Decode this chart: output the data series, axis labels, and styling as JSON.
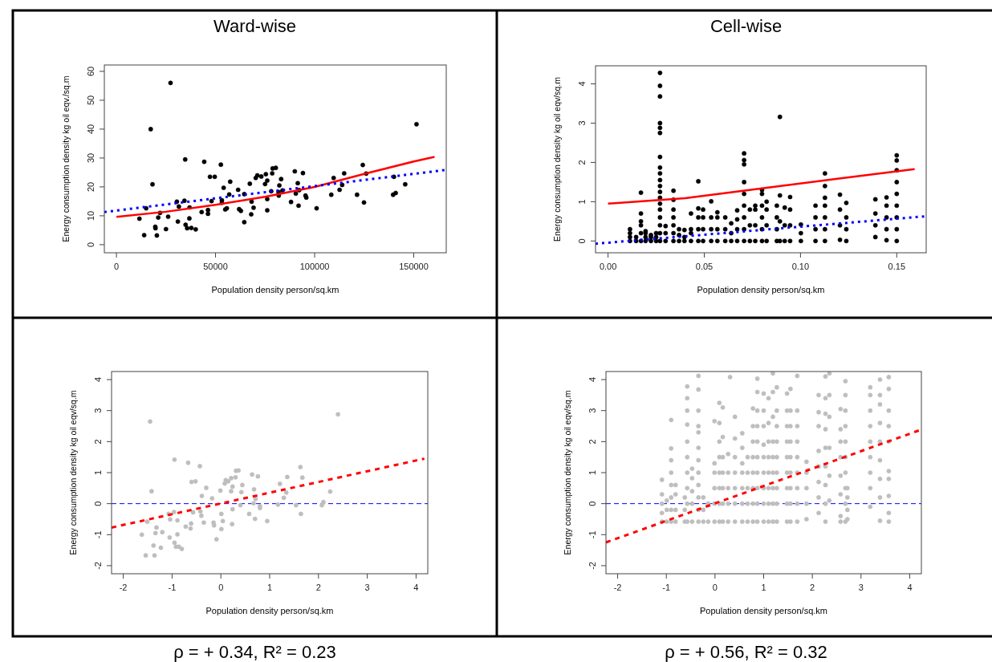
{
  "chart_data": [
    {
      "type": "scatter",
      "title": "Ward-wise",
      "xlabel": "Population density person/sq.km",
      "ylabel": "Energy consumption density kg oil eqv./sq.m",
      "xlim": [
        -6100,
        166400
      ],
      "ylim": [
        -2.8,
        62.2
      ],
      "xticks": [
        0,
        50000,
        100000,
        150000
      ],
      "yticks": [
        0,
        10,
        20,
        30,
        40,
        50,
        60
      ],
      "grid": false,
      "series": [
        {
          "type": "scatter",
          "color": "#000000",
          "marker": "circle",
          "x": [
            11600,
            14000,
            15000,
            17300,
            18200,
            19600,
            19700,
            20400,
            21100,
            22000,
            25000,
            26100,
            27300,
            30500,
            31000,
            31500,
            34300,
            34700,
            34900,
            35700,
            36800,
            36900,
            37800,
            40000,
            43000,
            44300,
            46200,
            46200,
            47200,
            48000,
            49600,
            52700,
            53200,
            53200,
            54100,
            54900,
            55700,
            56900,
            57400,
            61400,
            61900,
            62800,
            64500,
            64500,
            67300,
            68000,
            68200,
            69200,
            70300,
            71100,
            73100,
            75000,
            75400,
            76100,
            76100,
            76100,
            78100,
            78600,
            78800,
            80400,
            81800,
            81900,
            82200,
            83100,
            83800,
            88100,
            90000,
            90500,
            91500,
            91900,
            92200,
            94100,
            95400,
            95800,
            101000,
            108400,
            109600,
            112600,
            113900,
            114900,
            121400,
            124300,
            124900,
            126000,
            139600,
            140000,
            140900,
            145700,
            151400
          ],
          "values": [
            9.0,
            3.3,
            12.6,
            40,
            20.9,
            6.2,
            5.7,
            3.2,
            9.4,
            11,
            5.4,
            9.7,
            56,
            14.9,
            8.0,
            13.2,
            15.2,
            29.5,
            6.9,
            5.7,
            9.1,
            12.9,
            5.8,
            5.3,
            11.3,
            28.7,
            12.0,
            10.7,
            23.5,
            15.1,
            23.5,
            27.7,
            15.4,
            14.5,
            19.7,
            12.2,
            12.6,
            17.4,
            21.8,
            19.0,
            12.3,
            11.7,
            17.5,
            7.8,
            21.1,
            10.5,
            14.9,
            12.8,
            23.1,
            24.0,
            23.6,
            21.0,
            24.4,
            22.2,
            15.8,
            11.9,
            18.5,
            24.7,
            26.4,
            26.6,
            18.2,
            17.0,
            20.5,
            22.7,
            18.8,
            14.8,
            25.4,
            17.7,
            21.3,
            13.5,
            18.9,
            24.8,
            17.0,
            16.3,
            12.6,
            17.3,
            23.1,
            19.0,
            20.7,
            24.7,
            17.3,
            27.6,
            14.6,
            24.6,
            17.3,
            23.5,
            17.9,
            20.9,
            41.7
          ]
        },
        {
          "type": "line",
          "color": "#ff0000",
          "marker": "none",
          "line_style": "solid",
          "x": [
            0,
            25000,
            50000,
            75000,
            100000,
            125000,
            150000,
            160500
          ],
          "values": [
            9.6,
            11.4,
            13.8,
            16.6,
            20.0,
            24.5,
            28.8,
            30.4
          ]
        },
        {
          "type": "line",
          "color": "#0000ff",
          "marker": "none",
          "line_style": "dotted",
          "x": [
            -6100,
            166400
          ],
          "values": [
            11.3,
            25.9
          ]
        }
      ]
    },
    {
      "type": "scatter",
      "title": "Cell-wise",
      "xlabel": "Population density person/sq.km",
      "ylabel": "Energy consumption density kg oil eqv/sq.m",
      "xlim": [
        -0.0065,
        0.1653
      ],
      "ylim": [
        -0.3,
        4.46
      ],
      "xticks": [
        {
          "value": 0,
          "label": "0.00"
        },
        {
          "value": 0.05,
          "label": "0.05"
        },
        {
          "value": 0.1,
          "label": "0.10"
        },
        {
          "value": 0.15,
          "label": "0.15"
        }
      ],
      "yticks": [
        0,
        1,
        2,
        3,
        4
      ],
      "grid": false,
      "series": [
        {
          "type": "scatter",
          "color": "#000000",
          "marker": "circle",
          "x": [
            0.0114,
            0.0114,
            0.0114,
            0.0114,
            0.0146,
            0.0146,
            0.0171,
            0.0171,
            0.0171,
            0.0171,
            0.0171,
            0.0171,
            0.0195,
            0.0195,
            0.0195,
            0.0195,
            0.0223,
            0.0223,
            0.0223,
            0.025,
            0.025,
            0.025,
            0.027,
            0.027,
            0.027,
            0.027,
            0.027,
            0.027,
            0.027,
            0.027,
            0.027,
            0.027,
            0.027,
            0.027,
            0.027,
            0.027,
            0.027,
            0.027,
            0.027,
            0.027,
            0.027,
            0.0299,
            0.0299,
            0.0299,
            0.034,
            0.034,
            0.034,
            0.034,
            0.034,
            0.034,
            0.034,
            0.0369,
            0.0369,
            0.0369,
            0.0397,
            0.0397,
            0.0397,
            0.0431,
            0.0431,
            0.0431,
            0.0431,
            0.0469,
            0.0469,
            0.0469,
            0.0469,
            0.0469,
            0.0494,
            0.0494,
            0.0494,
            0.0494,
            0.0536,
            0.0536,
            0.0536,
            0.0536,
            0.0568,
            0.0568,
            0.0568,
            0.0568,
            0.0609,
            0.0609,
            0.0609,
            0.064,
            0.064,
            0.064,
            0.0671,
            0.0671,
            0.0671,
            0.0671,
            0.0707,
            0.0707,
            0.0707,
            0.0707,
            0.0707,
            0.0707,
            0.0707,
            0.0707,
            0.0707,
            0.0737,
            0.0737,
            0.0737,
            0.0765,
            0.0765,
            0.0765,
            0.0765,
            0.08,
            0.08,
            0.08,
            0.08,
            0.08,
            0.08,
            0.0824,
            0.0824,
            0.0824,
            0.0824,
            0.0877,
            0.0877,
            0.0877,
            0.0877,
            0.0893,
            0.0893,
            0.0893,
            0.0893,
            0.0918,
            0.0918,
            0.0918,
            0.0946,
            0.0946,
            0.0946,
            0.0946,
            0.1002,
            0.1002,
            0.1002,
            0.1078,
            0.1078,
            0.1078,
            0.1078,
            0.1127,
            0.1127,
            0.1127,
            0.1127,
            0.1127,
            0.1127,
            0.1127,
            0.1205,
            0.1205,
            0.1205,
            0.1205,
            0.1238,
            0.1238,
            0.1238,
            0.1238,
            0.1389,
            0.1389,
            0.1389,
            0.1389,
            0.1447,
            0.1447,
            0.1447,
            0.1447,
            0.1447,
            0.15,
            0.15,
            0.15,
            0.15,
            0.15,
            0.15,
            0.15,
            0.15,
            0.15
          ],
          "values": [
            0,
            0.1,
            0.2,
            0.3,
            0,
            0.1,
            0,
            0.2,
            0.4,
            0.5,
            0.7,
            1.23,
            0,
            0.1,
            0.2,
            0.25,
            0,
            0.1,
            0.15,
            0,
            0.1,
            0.2,
            0,
            0.2,
            0.4,
            0.6,
            0.8,
            0.95,
            1.1,
            1.25,
            1.4,
            1.55,
            1.72,
            1.87,
            2.14,
            2.75,
            2.88,
            3.0,
            3.68,
            3.95,
            4.28,
            0,
            0.2,
            0.38,
            0,
            0.2,
            0.4,
            0.6,
            0.8,
            1.05,
            1.28,
            0,
            0.15,
            0.3,
            0,
            0.1,
            0.28,
            0,
            0.2,
            0.3,
            0.7,
            0,
            0.3,
            0.6,
            0.83,
            1.52,
            0,
            0.3,
            0.6,
            0.8,
            0,
            0.3,
            0.6,
            1.01,
            0,
            0.3,
            0.6,
            0.73,
            0,
            0.3,
            0.6,
            0,
            0.2,
            0.45,
            0,
            0.3,
            0.55,
            0.78,
            0,
            0.3,
            0.6,
            0.9,
            1.2,
            1.5,
            1.95,
            2.06,
            2.23,
            0,
            0.4,
            0.8,
            0,
            0.4,
            0.8,
            0.9,
            0,
            0.3,
            0.6,
            0.9,
            1.2,
            1.3,
            0,
            0.4,
            0.8,
            1.0,
            0,
            0.3,
            0.6,
            0.9,
            3.16,
            1.16,
            0.5,
            0,
            0,
            0.4,
            0.85,
            0,
            0.4,
            0.8,
            1.12,
            0,
            0.2,
            0.42,
            0,
            0.3,
            0.6,
            0.9,
            0,
            0.3,
            0.6,
            0.9,
            1.1,
            1.4,
            1.72,
            0.03,
            0.4,
            0.8,
            1.18,
            0,
            0.3,
            0.6,
            0.97,
            0.1,
            0.4,
            0.7,
            1.06,
            0.02,
            0.3,
            0.6,
            0.9,
            1.11,
            0,
            0.3,
            0.6,
            0.9,
            1.2,
            1.5,
            1.8,
            2.05,
            2.18
          ]
        },
        {
          "type": "line",
          "color": "#ff0000",
          "marker": "none",
          "line_style": "solid",
          "x": [
            0,
            0.04,
            0.08,
            0.12,
            0.1593
          ],
          "values": [
            0.95,
            1.09,
            1.34,
            1.59,
            1.83
          ]
        },
        {
          "type": "line",
          "color": "#0000ff",
          "marker": "none",
          "line_style": "dotted",
          "x": [
            -0.0065,
            0.1653
          ],
          "values": [
            -0.07,
            0.63
          ]
        }
      ]
    },
    {
      "type": "scatter",
      "xlabel": "Population density person/sq.km",
      "ylabel": "Energy consumption density kg oil eqv/sq.m",
      "xlim": [
        -2.24,
        4.24
      ],
      "ylim": [
        -2.26,
        4.26
      ],
      "xticks": [
        -2,
        -1,
        0,
        1,
        2,
        3,
        4
      ],
      "yticks": [
        -2,
        -1,
        0,
        1,
        2,
        3,
        4
      ],
      "grid": false,
      "annotations": [
        "ρ = + 0.34,  R² = 0.23"
      ],
      "ref_lines": [
        {
          "axis": "y",
          "value": 0,
          "color": "#0000ff",
          "line_style": "dashed"
        }
      ],
      "series": [
        {
          "type": "scatter",
          "color": "#bebebe",
          "marker": "circle",
          "x": [
            -1.62,
            -1.54,
            -1.45,
            -1.51,
            -1.42,
            -1.38,
            -1.36,
            -1.34,
            -1.32,
            -1.23,
            -1.2,
            -1.07,
            -1.05,
            -1.04,
            -0.96,
            -0.95,
            -0.95,
            -0.92,
            -0.89,
            -0.89,
            -0.86,
            -0.8,
            -0.72,
            -0.67,
            -0.62,
            -0.61,
            -0.6,
            -0.57,
            -0.52,
            -0.43,
            -0.42,
            -0.4,
            -0.39,
            -0.35,
            -0.3,
            -0.18,
            -0.15,
            -0.14,
            -0.09,
            -0.01,
            0.01,
            0.01,
            0.04,
            0.08,
            0.1,
            0.15,
            0.21,
            0.21,
            0.23,
            0.24,
            0.24,
            0.3,
            0.31,
            0.36,
            0.4,
            0.42,
            0.44,
            0.58,
            0.64,
            0.67,
            0.68,
            0.7,
            0.71,
            0.76,
            0.8,
            0.8,
            0.95,
            1.17,
            1.21,
            1.29,
            1.34,
            1.36,
            1.54,
            1.63,
            1.64,
            1.67,
            2.07,
            2.1,
            2.24,
            2.4
          ],
          "values": [
            -1.0,
            -1.67,
            2.65,
            -0.58,
            0.4,
            -1.35,
            -1.67,
            -0.95,
            -0.77,
            -1.42,
            -0.92,
            -0.33,
            -1.09,
            -0.51,
            -0.27,
            1.42,
            -1.26,
            -1.39,
            -0.54,
            -0.99,
            -1.39,
            -1.46,
            -0.74,
            1.32,
            -0.8,
            -0.64,
            0.7,
            -0.28,
            0.72,
            1.21,
            -0.25,
            -0.39,
            0.25,
            -0.61,
            0.51,
            0.17,
            -0.61,
            -0.7,
            -1.15,
            0.42,
            -0.33,
            -0.82,
            -0.56,
            0.65,
            0.76,
            0.72,
            0.82,
            0.4,
            -0.66,
            0.55,
            -0.18,
            0.85,
            1.06,
            1.07,
            -0.05,
            0.37,
            0.6,
            -0.33,
            0.94,
            0.01,
            0.46,
            -0.49,
            0.15,
            0.88,
            -0.08,
            -0.14,
            -0.56,
            -0.03,
            0.64,
            0.19,
            0.36,
            0.86,
            -0.05,
            1.18,
            -0.33,
            0.84,
            -0.05,
            0.05,
            0.39,
            2.88
          ]
        },
        {
          "type": "line",
          "color": "#ff0000",
          "marker": "none",
          "line_style": "dashed",
          "x": [
            -2.24,
            4.17
          ],
          "values": [
            -0.77,
            1.45
          ]
        }
      ]
    },
    {
      "type": "scatter",
      "xlabel": "Population density person/sq.km",
      "ylabel": "Energy consumption density kg oil eqv/sq.m",
      "xlim": [
        -2.24,
        4.24
      ],
      "ylim": [
        -2.26,
        4.26
      ],
      "xticks": [
        -2,
        -1,
        0,
        1,
        2,
        3,
        4
      ],
      "yticks": [
        -2,
        -1,
        0,
        1,
        2,
        3,
        4
      ],
      "grid": false,
      "annotations": [
        "ρ = + 0.56,  R² = 0.32"
      ],
      "ref_lines": [
        {
          "axis": "y",
          "value": 0,
          "color": "#0000ff",
          "line_style": "dashed"
        }
      ],
      "series": [
        {
          "type": "scatter",
          "color": "#bebebe",
          "marker": "circle",
          "x": [
            -1.09,
            -1.09,
            -1.09,
            -1.09,
            -1.09,
            -0.99,
            -0.99,
            -0.99,
            -0.9,
            -0.9,
            -0.9,
            -0.9,
            -0.9,
            -0.9,
            -0.9,
            -0.9,
            -0.81,
            -0.81,
            -0.81,
            -0.81,
            -0.62,
            -0.62,
            -0.62,
            -0.57,
            -0.57,
            -0.57,
            -0.57,
            -0.57,
            -0.57,
            -0.57,
            -0.57,
            -0.57,
            -0.57,
            -0.47,
            -0.47,
            -0.47,
            -0.47,
            -0.47,
            -0.34,
            -0.34,
            -0.34,
            -0.34,
            -0.34,
            -0.34,
            -0.34,
            -0.34,
            -0.34,
            -0.34,
            -0.34,
            -0.34,
            -0.24,
            -0.24,
            -0.24,
            -0.14,
            -0.14,
            -0.01,
            -0.01,
            -0.01,
            -0.01,
            -0.01,
            -0.01,
            0.09,
            0.09,
            0.09,
            0.09,
            0.09,
            0.09,
            0.09,
            0.09,
            0.16,
            0.16,
            0.16,
            0.16,
            0.16,
            0.16,
            0.16,
            0.27,
            0.27,
            0.27,
            0.27,
            0.27,
            0.31,
            0.41,
            0.41,
            0.41,
            0.41,
            0.41,
            0.41,
            0.41,
            0.56,
            0.56,
            0.56,
            0.56,
            0.56,
            0.56,
            0.56,
            0.67,
            0.67,
            0.67,
            0.67,
            0.67,
            0.78,
            0.78,
            0.78,
            0.78,
            0.78,
            0.78,
            0.78,
            0.78,
            0.87,
            0.87,
            0.87,
            0.87,
            0.87,
            0.87,
            0.87,
            0.87,
            0.87,
            0.87,
            1.0,
            1.0,
            1.0,
            1.0,
            1.0,
            1.0,
            1.0,
            1.0,
            1.0,
            1.1,
            1.1,
            1.1,
            1.1,
            1.1,
            1.1,
            1.1,
            1.1,
            1.19,
            1.19,
            1.19,
            1.19,
            1.19,
            1.19,
            1.19,
            1.19,
            1.19,
            1.27,
            1.27,
            1.27,
            1.27,
            1.27,
            1.27,
            1.27,
            1.27,
            1.27,
            1.48,
            1.48,
            1.48,
            1.48,
            1.48,
            1.48,
            1.48,
            1.48,
            1.48,
            1.55,
            1.55,
            1.55,
            1.55,
            1.55,
            1.55,
            1.55,
            1.55,
            1.55,
            1.69,
            1.69,
            1.69,
            1.69,
            1.69,
            1.69,
            1.69,
            1.69,
            1.69,
            1.88,
            1.88,
            1.88,
            1.88,
            1.88,
            2.13,
            2.13,
            2.13,
            2.13,
            2.13,
            2.13,
            2.13,
            2.13,
            2.27,
            2.27,
            2.27,
            2.27,
            2.27,
            2.27,
            2.27,
            2.27,
            2.27,
            2.35,
            2.35,
            2.35,
            2.35,
            2.35,
            2.35,
            2.58,
            2.58,
            2.58,
            2.58,
            2.58,
            2.58,
            2.58,
            2.58,
            2.68,
            2.68,
            2.68,
            2.68,
            2.68,
            2.68,
            2.68,
            2.68,
            2.68,
            2.68,
            2.72,
            2.72,
            2.72,
            2.72,
            3.19,
            3.19,
            3.19,
            3.19,
            3.19,
            3.19,
            3.19,
            3.19,
            3.19,
            3.39,
            3.39,
            3.39,
            3.39,
            3.39,
            3.39,
            3.39,
            3.39,
            3.39,
            3.57,
            3.57,
            3.57,
            3.57,
            3.57,
            3.57,
            3.57,
            3.57,
            3.57,
            3.57
          ],
          "values": [
            -0.58,
            -0.3,
            0,
            0.3,
            0.77,
            -0.58,
            -0.2,
            0.1,
            -0.58,
            -0.2,
            0.2,
            0.6,
            1.0,
            1.4,
            1.78,
            2.7,
            -0.58,
            -0.2,
            0.3,
            0.6,
            -0.58,
            -0.2,
            0.2,
            -0.58,
            0,
            0.5,
            1.0,
            1.5,
            2.0,
            2.55,
            3.0,
            3.4,
            3.78,
            -0.58,
            0,
            0.4,
            0.82,
            1.13,
            -0.58,
            -0.2,
            0.2,
            0.6,
            1.0,
            1.4,
            1.8,
            2.3,
            2.5,
            3.0,
            3.68,
            4.12,
            -0.58,
            -0.2,
            0.2,
            -0.58,
            0,
            -0.58,
            0,
            0.5,
            1.0,
            1.3,
            2.66,
            -0.58,
            0,
            0.5,
            1.0,
            1.5,
            2.0,
            2.6,
            3.25,
            -0.58,
            0,
            0.5,
            1.0,
            1.5,
            2.15,
            3.1,
            -0.58,
            0,
            0.5,
            1.0,
            1.6,
            4.08,
            -0.58,
            0,
            0.5,
            1.0,
            1.5,
            2.1,
            2.8,
            -0.58,
            0,
            0.5,
            1.0,
            1.3,
            1.8,
            2.27,
            -0.58,
            0,
            0.5,
            1.0,
            1.5,
            -0.58,
            0,
            0.5,
            1.0,
            1.5,
            2.0,
            2.5,
            3.07,
            -0.58,
            0,
            0.5,
            1.0,
            1.5,
            2.0,
            2.5,
            3.0,
            3.6,
            4.03,
            -0.58,
            0,
            0.5,
            1.0,
            1.5,
            1.9,
            2.5,
            3.0,
            3.55,
            -0.58,
            0,
            0.5,
            1.0,
            1.5,
            2.0,
            2.6,
            3.4,
            -0.58,
            0,
            0.5,
            1.0,
            1.5,
            2.0,
            2.8,
            3.6,
            4.2,
            -0.58,
            0,
            0.5,
            1.0,
            1.5,
            2.0,
            2.5,
            3.0,
            3.75,
            -0.58,
            0,
            0.5,
            1.0,
            1.5,
            2.0,
            2.5,
            3.0,
            3.55,
            -0.58,
            0,
            0.5,
            1.0,
            1.5,
            2.0,
            2.5,
            3.0,
            3.7,
            -0.58,
            0,
            0.5,
            1.0,
            1.5,
            2.0,
            2.5,
            3.0,
            4.12,
            -0.5,
            0,
            0.5,
            1.0,
            1.35,
            -0.3,
            0.2,
            0.7,
            1.2,
            1.7,
            2.5,
            2.95,
            3.5,
            -0.58,
            0,
            0.6,
            1.2,
            1.8,
            2.4,
            2.9,
            3.4,
            4.1,
            0.1,
            0.9,
            1.8,
            2.8,
            3.5,
            4.2,
            -0.58,
            -0.4,
            0.3,
            0.9,
            1.5,
            2.0,
            2.4,
            3.05,
            -0.58,
            0,
            0.5,
            1.0,
            1.5,
            2.0,
            2.5,
            3.0,
            3.5,
            3.95,
            -0.5,
            -0.2,
            0.2,
            0.5,
            -0.1,
            0.5,
            1.0,
            1.5,
            2.0,
            2.5,
            3.0,
            3.5,
            3.75,
            -0.55,
            0.2,
            0.8,
            1.4,
            2.0,
            2.6,
            3.2,
            3.5,
            4.0,
            -0.58,
            -0.3,
            0.25,
            0.8,
            1.05,
            2.0,
            2.5,
            3.0,
            3.7,
            4.08
          ]
        },
        {
          "type": "line",
          "color": "#ff0000",
          "marker": "none",
          "line_style": "dashed",
          "x": [
            -2.24,
            4.19
          ],
          "values": [
            -1.25,
            2.36
          ]
        }
      ]
    }
  ]
}
